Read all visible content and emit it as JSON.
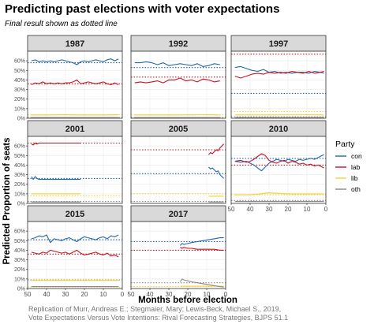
{
  "chart_data": {
    "type": "line",
    "title": "Predicting past elections with voter expectations",
    "subtitle": "Final result shown as dotted line",
    "xlabel": "Months before election",
    "ylabel": "Predicted Proportion of seats",
    "xlim": [
      50,
      0
    ],
    "ylim": [
      0,
      70
    ],
    "x_ticks": [
      50,
      40,
      30,
      20,
      10,
      0
    ],
    "y_ticks": [
      0,
      10,
      20,
      30,
      40,
      50,
      60
    ],
    "y_tick_labels": [
      "0%",
      "10%",
      "20%",
      "30%",
      "40%",
      "50%",
      "60%"
    ],
    "grid": true,
    "legend": {
      "title": "Party",
      "position": "right",
      "entries": [
        {
          "name": "con",
          "color": "#2166ac"
        },
        {
          "name": "lab",
          "color": "#cc1122"
        },
        {
          "name": "lib",
          "color": "#f5d130"
        },
        {
          "name": "oth",
          "color": "#888888"
        }
      ]
    },
    "caption": [
      "Replication of Murr, Andreas E.; Stegmaier, Mary; Lewis-Beck, Michael S., 2019,",
      "Vote Expectations Versus Vote Intentions: Rival Forecasting Strategies, BJPS 51.1"
    ],
    "panels": [
      {
        "label": "1987",
        "final": {
          "con": 58,
          "lab": 36,
          "lib": 3.5,
          "oth": 0.8
        },
        "series": [
          {
            "name": "con",
            "x": [
              48,
              46,
              44,
              42,
              40,
              38,
              36,
              34,
              32,
              30,
              28,
              26,
              24,
              22,
              20,
              18,
              16,
              14,
              12,
              10,
              8,
              6,
              4,
              2
            ],
            "y": [
              60,
              61,
              59,
              60,
              59,
              60,
              59,
              60,
              61,
              60,
              59,
              58,
              56,
              59,
              60,
              59,
              60,
              61,
              60,
              59,
              61,
              62,
              60,
              62
            ]
          },
          {
            "name": "lab",
            "x": [
              48,
              46,
              44,
              42,
              40,
              38,
              36,
              34,
              32,
              30,
              28,
              26,
              24,
              22,
              20,
              18,
              16,
              14,
              12,
              10,
              8,
              6,
              4,
              2
            ],
            "y": [
              35,
              37,
              36,
              38,
              36,
              37,
              36,
              37,
              36,
              37,
              37,
              38,
              40,
              36,
              37,
              38,
              37,
              36,
              37,
              38,
              36,
              35,
              37,
              35
            ]
          },
          {
            "name": "lib",
            "x": [
              48,
              40,
              30,
              20,
              10,
              2
            ],
            "y": [
              3.5,
              3.5,
              3.6,
              3.5,
              3.5,
              3.6
            ]
          },
          {
            "name": "oth",
            "x": [
              48,
              40,
              30,
              20,
              10,
              2
            ],
            "y": [
              0.8,
              0.8,
              0.8,
              0.8,
              0.8,
              0.8
            ]
          }
        ]
      },
      {
        "label": "1992",
        "final": {
          "con": 53,
          "lab": 43,
          "lib": 3.5,
          "oth": 0.8
        },
        "series": [
          {
            "name": "con",
            "x": [
              48,
              45,
              42,
              39,
              36,
              33,
              30,
              27,
              24,
              21,
              18,
              15,
              12,
              9,
              6,
              3
            ],
            "y": [
              58,
              58,
              59,
              58,
              56,
              58,
              55,
              56,
              57,
              56,
              55,
              57,
              54,
              55,
              57,
              56
            ]
          },
          {
            "name": "lab",
            "x": [
              48,
              45,
              42,
              39,
              36,
              33,
              30,
              27,
              24,
              21,
              18,
              15,
              12,
              9,
              6,
              3
            ],
            "y": [
              37,
              38,
              37,
              38,
              39,
              37,
              40,
              40,
              42,
              39,
              40,
              38,
              41,
              40,
              38,
              39
            ]
          },
          {
            "name": "lib",
            "x": [
              48,
              30,
              10,
              3
            ],
            "y": [
              3.5,
              3.5,
              3.6,
              3.5
            ]
          },
          {
            "name": "oth",
            "x": [
              48,
              30,
              10,
              3
            ],
            "y": [
              0.8,
              0.8,
              0.8,
              0.8
            ]
          }
        ]
      },
      {
        "label": "1997",
        "final": {
          "con": 26,
          "lab": 67,
          "lib": 7,
          "oth": 1.5
        },
        "series": [
          {
            "name": "con",
            "x": [
              48,
              45,
              42,
              39,
              36,
              33,
              30,
              27,
              24,
              21,
              18,
              15,
              12,
              9,
              6,
              3,
              1
            ],
            "y": [
              53,
              54,
              52,
              50,
              49,
              51,
              48,
              49,
              47,
              48,
              47,
              48,
              48,
              47,
              49,
              48,
              47
            ]
          },
          {
            "name": "lab",
            "x": [
              48,
              45,
              42,
              39,
              36,
              33,
              30,
              27,
              24,
              21,
              18,
              15,
              12,
              9,
              6,
              3,
              1
            ],
            "y": [
              44,
              42,
              44,
              46,
              47,
              46,
              48,
              47,
              48,
              47,
              49,
              48,
              47,
              49,
              47,
              48,
              49
            ]
          },
          {
            "name": "lib",
            "x": [
              48,
              30,
              10,
              1
            ],
            "y": [
              3.5,
              3.5,
              3.6,
              3.5
            ]
          },
          {
            "name": "oth",
            "x": [
              48,
              30,
              10,
              1
            ],
            "y": [
              0.8,
              0.8,
              0.8,
              0.8
            ]
          }
        ]
      },
      {
        "label": "2001",
        "final": {
          "con": 26,
          "lab": 63,
          "lib": 8,
          "oth": 2
        },
        "series": [
          {
            "name": "con",
            "x": [
              48,
              47,
              46,
              45,
              44,
              42,
              40,
              38,
              35,
              30,
              25,
              22
            ],
            "y": [
              28,
              25,
              28,
              26,
              25,
              25,
              25,
              25,
              25,
              25,
              25,
              25
            ]
          },
          {
            "name": "lab",
            "x": [
              48,
              47,
              46,
              45,
              44,
              42,
              40,
              38,
              35,
              30,
              25,
              22
            ],
            "y": [
              62,
              61,
              63,
              62,
              63,
              63,
              63,
              63,
              63,
              63,
              63,
              63
            ]
          },
          {
            "name": "lib",
            "x": [
              48,
              40,
              30,
              22
            ],
            "y": [
              10,
              10,
              10,
              10
            ]
          },
          {
            "name": "oth",
            "x": [
              48,
              40,
              30,
              22
            ],
            "y": [
              1.5,
              1.5,
              1.5,
              1.5
            ]
          }
        ]
      },
      {
        "label": "2005",
        "final": {
          "con": 31,
          "lab": 56,
          "lib": 10,
          "oth": 2
        },
        "series": [
          {
            "name": "con",
            "x": [
              9,
              8,
              7,
              6,
              5,
              4,
              3,
              2,
              1
            ],
            "y": [
              38,
              36,
              37,
              35,
              33,
              34,
              30,
              28,
              26
            ]
          },
          {
            "name": "lab",
            "x": [
              9,
              8,
              7,
              6,
              5,
              4,
              3,
              2,
              1
            ],
            "y": [
              51,
              53,
              52,
              54,
              56,
              55,
              58,
              60,
              62
            ]
          },
          {
            "name": "lib",
            "x": [
              9,
              5,
              1
            ],
            "y": [
              7.5,
              7.5,
              7.5
            ]
          },
          {
            "name": "oth",
            "x": [
              9,
              5,
              1
            ],
            "y": [
              1.5,
              1.5,
              1.5
            ]
          }
        ]
      },
      {
        "label": "2010",
        "final": {
          "con": 47,
          "lab": 40,
          "lib": 9,
          "oth": 3
        },
        "series": [
          {
            "name": "con",
            "x": [
              48,
              45,
              42,
              40,
              38,
              36,
              34,
              32,
              30,
              28,
              26,
              24,
              22,
              20,
              18,
              16,
              14,
              12,
              10,
              8,
              6,
              4,
              2,
              1
            ],
            "y": [
              44,
              43,
              44,
              42,
              40,
              37,
              34,
              38,
              42,
              44,
              46,
              45,
              44,
              46,
              45,
              44,
              46,
              45,
              46,
              47,
              46,
              48,
              50,
              51
            ]
          },
          {
            "name": "lab",
            "x": [
              48,
              45,
              42,
              40,
              38,
              36,
              34,
              32,
              30,
              28,
              26,
              24,
              22,
              20,
              18,
              16,
              14,
              12,
              10,
              8,
              6,
              4,
              2,
              1
            ],
            "y": [
              44,
              45,
              43,
              44,
              46,
              49,
              52,
              50,
              45,
              43,
              42,
              44,
              45,
              42,
              44,
              43,
              41,
              42,
              40,
              41,
              39,
              40,
              38,
              37
            ]
          },
          {
            "name": "lib",
            "x": [
              48,
              40,
              35,
              30,
              20,
              10,
              1
            ],
            "y": [
              9,
              9,
              10,
              11,
              10,
              10,
              10
            ]
          },
          {
            "name": "oth",
            "x": [
              48,
              30,
              10,
              1
            ],
            "y": [
              2,
              2,
              2,
              2
            ]
          }
        ]
      },
      {
        "label": "2015",
        "final": {
          "con": 51,
          "lab": 36,
          "lib": 1.5,
          "oth": 9
        },
        "series": [
          {
            "name": "con",
            "x": [
              48,
              46,
              44,
              42,
              40,
              38,
              36,
              34,
              32,
              30,
              28,
              26,
              24,
              22,
              20,
              18,
              16,
              14,
              12,
              10,
              8,
              6,
              4,
              2
            ],
            "y": [
              52,
              53,
              55,
              54,
              56,
              48,
              52,
              51,
              50,
              52,
              53,
              51,
              49,
              52,
              54,
              53,
              52,
              51,
              53,
              54,
              52,
              55,
              54,
              56
            ]
          },
          {
            "name": "lab",
            "x": [
              48,
              46,
              44,
              42,
              40,
              38,
              36,
              34,
              32,
              30,
              28,
              26,
              24,
              22,
              20,
              18,
              16,
              14,
              12,
              10,
              8,
              6,
              4,
              2
            ],
            "y": [
              38,
              37,
              36,
              38,
              37,
              40,
              39,
              38,
              37,
              38,
              36,
              38,
              40,
              37,
              35,
              36,
              37,
              38,
              36,
              35,
              37,
              34,
              35,
              33
            ]
          },
          {
            "name": "lib",
            "x": [
              48,
              40,
              30,
              20,
              10,
              2
            ],
            "y": [
              8.5,
              8.5,
              8.5,
              8.5,
              8.5,
              8.5
            ]
          },
          {
            "name": "oth",
            "x": [
              48,
              40,
              30,
              20,
              10,
              2
            ],
            "y": [
              2,
              2,
              2,
              2,
              2,
              2
            ]
          }
        ]
      },
      {
        "label": "2017",
        "final": {
          "con": 49,
          "lab": 40,
          "lib": 2,
          "oth": 6
        },
        "series": [
          {
            "name": "con",
            "x": [
              24,
              23,
              22,
              20,
              18,
              15,
              12,
              9,
              6,
              3,
              1
            ],
            "y": [
              45,
              47,
              46,
              47,
              48,
              49,
              50,
              51,
              52,
              53,
              53
            ]
          },
          {
            "name": "lab",
            "x": [
              24,
              23,
              22,
              20,
              18,
              15,
              12,
              9,
              6,
              3,
              1
            ],
            "y": [
              43,
              42,
              43,
              42,
              42,
              41,
              41,
              41,
              41,
              40,
              40
            ]
          },
          {
            "name": "lib",
            "x": [
              24,
              12,
              1
            ],
            "y": [
              2.5,
              2.5,
              2.5
            ]
          },
          {
            "name": "oth",
            "x": [
              24,
              23,
              22,
              20,
              18,
              15,
              12,
              9,
              6,
              3,
              1
            ],
            "y": [
              7,
              10,
              9,
              8,
              7,
              6,
              5,
              4,
              3,
              2,
              1.5
            ]
          }
        ]
      }
    ]
  }
}
